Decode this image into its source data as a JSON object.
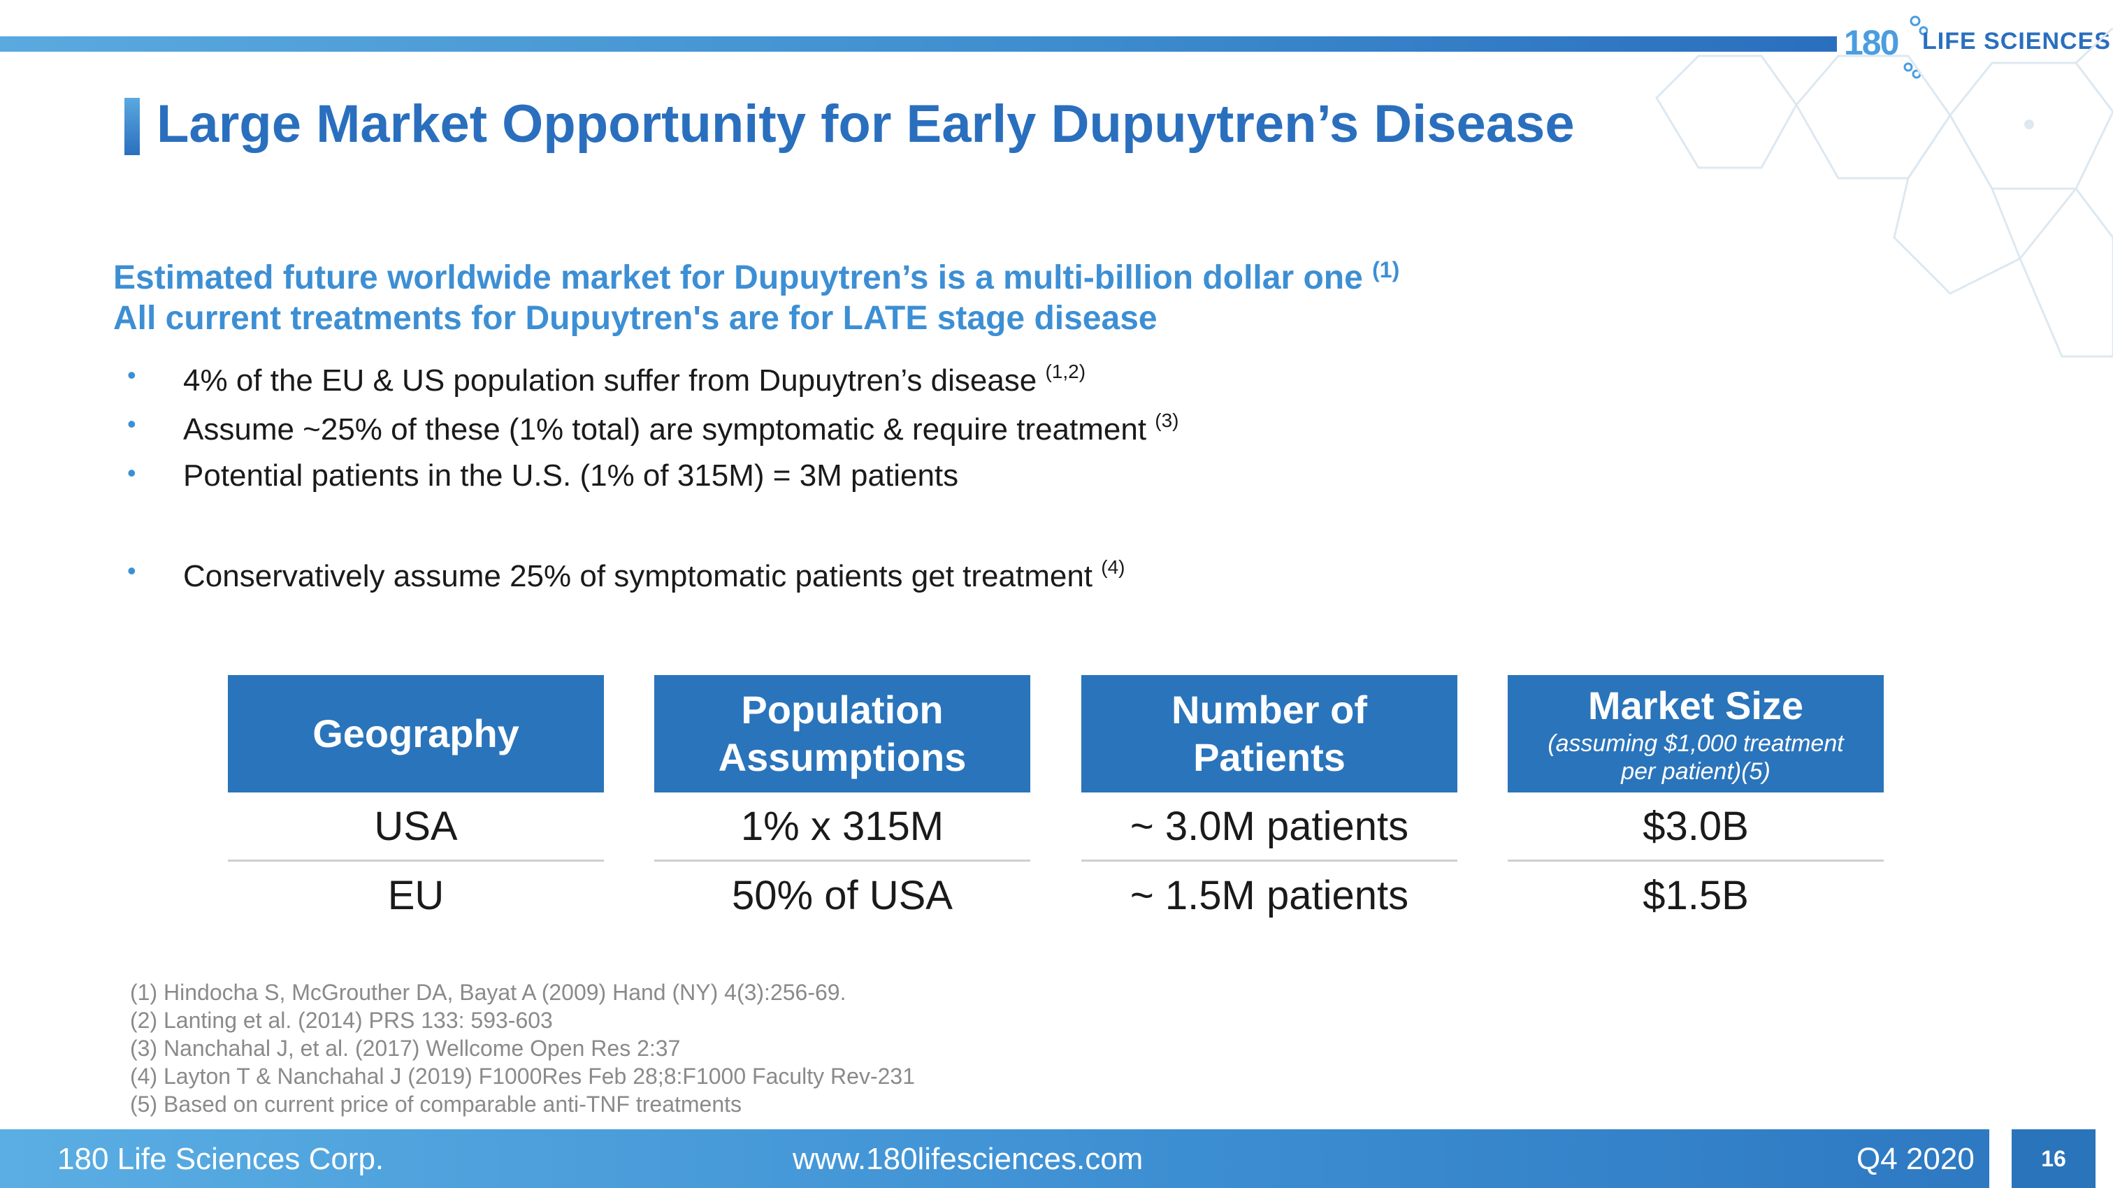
{
  "logo": {
    "number": "180",
    "text": "LIFE SCIENCES"
  },
  "title": "Large Market Opportunity for Early Dupuytren’s Disease",
  "subheads": [
    {
      "text": "Estimated future worldwide market for Dupuytren’s is a multi-billion dollar one ",
      "ref": "(1)"
    },
    {
      "text": "All current treatments for Dupuytren's are for LATE stage disease",
      "ref": ""
    }
  ],
  "bullet_symbol": "•",
  "bullets": [
    {
      "text": "4% of the EU  & US  population suffer from Dupuytren’s disease ",
      "ref": "(1,2)"
    },
    {
      "text": "Assume ~25% of these (1% total) are symptomatic & require treatment ",
      "ref": "(3)"
    },
    {
      "text": "Potential patients in the U.S. (1% of 315M) = 3M patients",
      "ref": ""
    },
    {
      "text": "Conservatively assume 25% of symptomatic patients get treatment ",
      "ref": "(4)"
    }
  ],
  "table": {
    "columns": [
      {
        "header": "Geography",
        "subheader": "",
        "rows": [
          "USA",
          "EU"
        ]
      },
      {
        "header": "Population Assumptions",
        "subheader": "",
        "rows": [
          "1% x 315M",
          "50% of USA"
        ]
      },
      {
        "header": "Number of Patients",
        "subheader": "",
        "rows": [
          "~ 3.0M patients",
          "~ 1.5M patients"
        ]
      },
      {
        "header": "Market Size",
        "subheader": "(assuming $1,000 treatment per patient)(5)",
        "rows": [
          "$3.0B",
          "$1.5B"
        ]
      }
    ]
  },
  "references": [
    "(1) Hindocha S, McGrouther DA, Bayat A (2009) Hand (NY) 4(3):256-69.",
    "(2) Lanting et al. (2014) PRS 133: 593-603",
    "(3) Nanchahal J, et al. (2017) Wellcome Open Res 2:37",
    "(4) Layton T & Nanchahal J (2019) F1000Res Feb 28;8:F1000 Faculty Rev-231",
    "(5) Based on current price of comparable anti-TNF treatments"
  ],
  "footer": {
    "company": "180 Life Sciences Corp.",
    "website": "www.180lifesciences.com",
    "period": "Q4 2020",
    "page": "16"
  },
  "colors": {
    "primary": "#2a74bb",
    "accent": "#3d8fd4"
  }
}
